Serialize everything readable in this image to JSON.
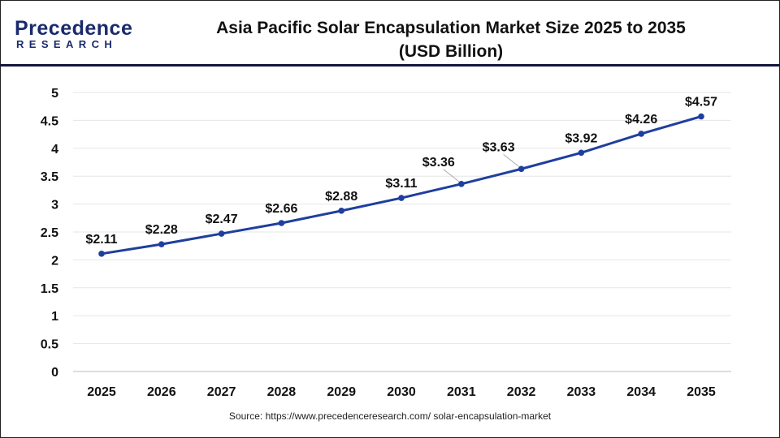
{
  "logo": {
    "line1": "Precedence",
    "line2": "RESEARCH"
  },
  "chart_data": {
    "type": "line",
    "title": "Asia Pacific Solar Encapsulation Market Size 2025 to 2035",
    "subtitle": "(USD Billion)",
    "categories": [
      "2025",
      "2026",
      "2027",
      "2028",
      "2029",
      "2030",
      "2031",
      "2032",
      "2033",
      "2034",
      "2035"
    ],
    "values": [
      2.11,
      2.28,
      2.47,
      2.66,
      2.88,
      3.11,
      3.36,
      3.63,
      3.92,
      4.26,
      4.57
    ],
    "data_labels": [
      "$2.11",
      "$2.28",
      "$2.47",
      "$2.66",
      "$2.88",
      "$3.11",
      "$3.36",
      "$3.63",
      "$3.92",
      "$4.26",
      "$4.57"
    ],
    "ylim": [
      0,
      5
    ],
    "yticks": [
      "0",
      "0.5",
      "1",
      "1.5",
      "2",
      "2.5",
      "3",
      "3.5",
      "4",
      "4.5",
      "5"
    ],
    "grid": true,
    "line_color": "#1f3f9e"
  },
  "source": "Source: https://www.precedenceresearch.com/ solar-encapsulation-market"
}
